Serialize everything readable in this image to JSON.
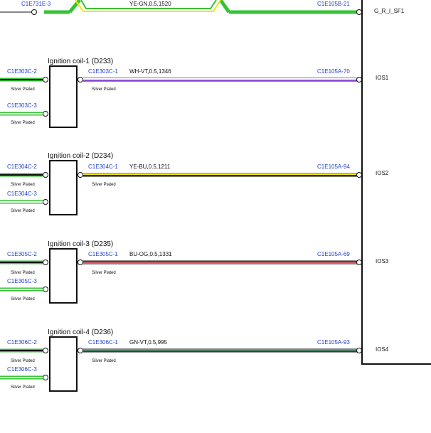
{
  "top_wire": {
    "left_conn": "C1E731E-3",
    "spec": "YE-GN,0.5,1520",
    "right_conn": "C1E105B-21",
    "pin_label": "G_R_I_SF1"
  },
  "coils": [
    {
      "title": "Ignition coil-1 (D233)",
      "pin2": "C1E303C-2",
      "pin3": "C1E303C-3",
      "plating_pin2": "Silver Plated",
      "plating_pin3": "Silver Plated",
      "out_conn": "C1E303C-1",
      "out_plating": "Silver Plated",
      "spec": "WH-VT,0.5,1346",
      "ecu_conn": "C1E105A-70",
      "ecu_pin": "IOS1",
      "wire_colors": [
        "#ffffff",
        "#8a4fd1"
      ]
    },
    {
      "title": "Ignition coil-2 (D234)",
      "pin2": "C1E304C-2",
      "pin3": "C1E304C-3",
      "plating_pin2": "Silver Plated",
      "plating_pin3": "Silver Plated",
      "out_conn": "C1E304C-1",
      "out_plating": "Silver Plated",
      "spec": "YE-BU,0.5,1211",
      "ecu_conn": "C1E105A-94",
      "ecu_pin": "IOS2",
      "wire_colors": [
        "#f2e600",
        "#1f3fd0"
      ]
    },
    {
      "title": "Ignition coil-3 (D235)",
      "pin2": "C1E305C-2",
      "pin3": "C1E305C-3",
      "plating_pin2": "Silver Plated",
      "plating_pin3": "Silver Plated",
      "out_conn": "C1E305C-1",
      "out_plating": "Silver Plated",
      "spec": "BU-OG,0.5,1331",
      "ecu_conn": "C1E105A-69",
      "ecu_pin": "IOS3",
      "wire_colors": [
        "#2a3fd8",
        "#ff5a3a"
      ]
    },
    {
      "title": "Ignition coil-4 (D236)",
      "pin2": "C1E306C-2",
      "pin3": "C1E306C-3",
      "plating_pin2": "Silver Plated",
      "plating_pin3": "Silver Plated",
      "out_conn": "C1E306C-1",
      "out_plating": "Silver Plated",
      "spec": "GN-VT,0.5,995",
      "ecu_conn": "C1E105A-93",
      "ecu_pin": "IOS4",
      "wire_colors": [
        "#33c24a",
        "#8a4fd1"
      ]
    }
  ],
  "colors": {
    "green_wire": "#33c433",
    "ground_wire": "#111111",
    "label_blue": "#1f3fd0"
  }
}
